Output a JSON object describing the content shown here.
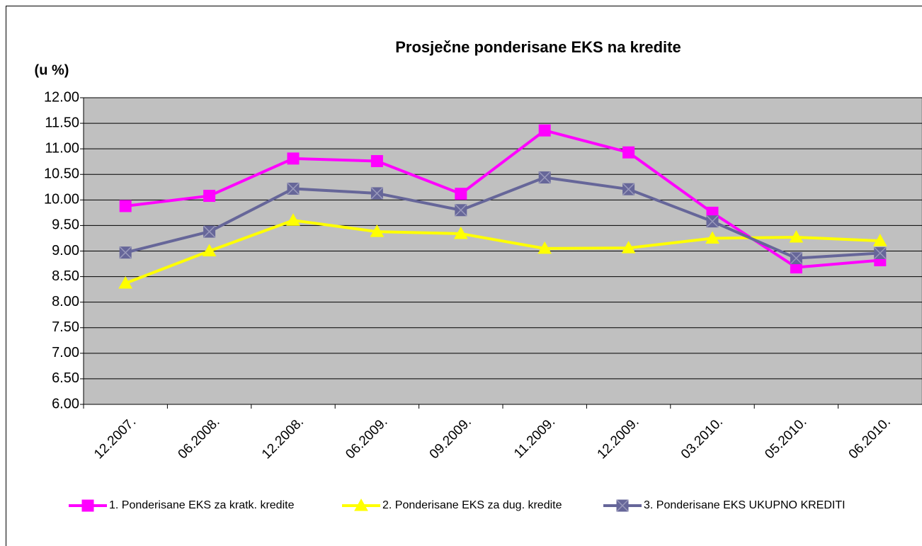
{
  "chart_data": {
    "type": "line",
    "title": "Prosječne ponderisane EKS na kredite",
    "y_label": "(u %)",
    "categories": [
      "12.2007.",
      "06.2008.",
      "12.2008.",
      "06.2009.",
      "09.2009.",
      "11.2009.",
      "12.2009.",
      "03.2010.",
      "05.2010.",
      "06.2010."
    ],
    "series": [
      {
        "name": "1. Ponderisane EKS za kratk. kredite",
        "color": "#ff00ff",
        "marker": "square",
        "values": [
          9.88,
          10.08,
          10.81,
          10.76,
          10.12,
          11.36,
          10.93,
          9.75,
          8.68,
          8.82
        ]
      },
      {
        "name": "2. Ponderisane EKS za dug. kredite",
        "color": "#ffff00",
        "marker": "triangle",
        "values": [
          8.37,
          9.0,
          9.6,
          9.38,
          9.34,
          9.05,
          9.06,
          9.25,
          9.27,
          9.2
        ]
      },
      {
        "name": "3. Ponderisane EKS UKUPNO KREDITI",
        "color": "#666699",
        "marker": "square-x",
        "values": [
          8.97,
          9.38,
          10.22,
          10.13,
          9.8,
          10.44,
          10.21,
          9.58,
          8.86,
          8.96
        ]
      }
    ],
    "ylim": [
      6,
      12
    ],
    "yticks": [
      {
        "value": 6,
        "label": "6.00"
      },
      {
        "value": 6.5,
        "label": "6.50"
      },
      {
        "value": 7,
        "label": "7.00"
      },
      {
        "value": 7.5,
        "label": "7.50"
      },
      {
        "value": 8,
        "label": "8.00"
      },
      {
        "value": 8.5,
        "label": "8.50"
      },
      {
        "value": 9,
        "label": "9.00"
      },
      {
        "value": 9.5,
        "label": "9.50"
      },
      {
        "value": 10,
        "label": "10.00"
      },
      {
        "value": 10.5,
        "label": "10.50"
      },
      {
        "value": 11,
        "label": "11.00"
      },
      {
        "value": 11.5,
        "label": "11.50"
      },
      {
        "value": 12,
        "label": "12.00"
      }
    ],
    "grid": true,
    "legend": "bottom",
    "plot_background": "#c0c0c0"
  }
}
